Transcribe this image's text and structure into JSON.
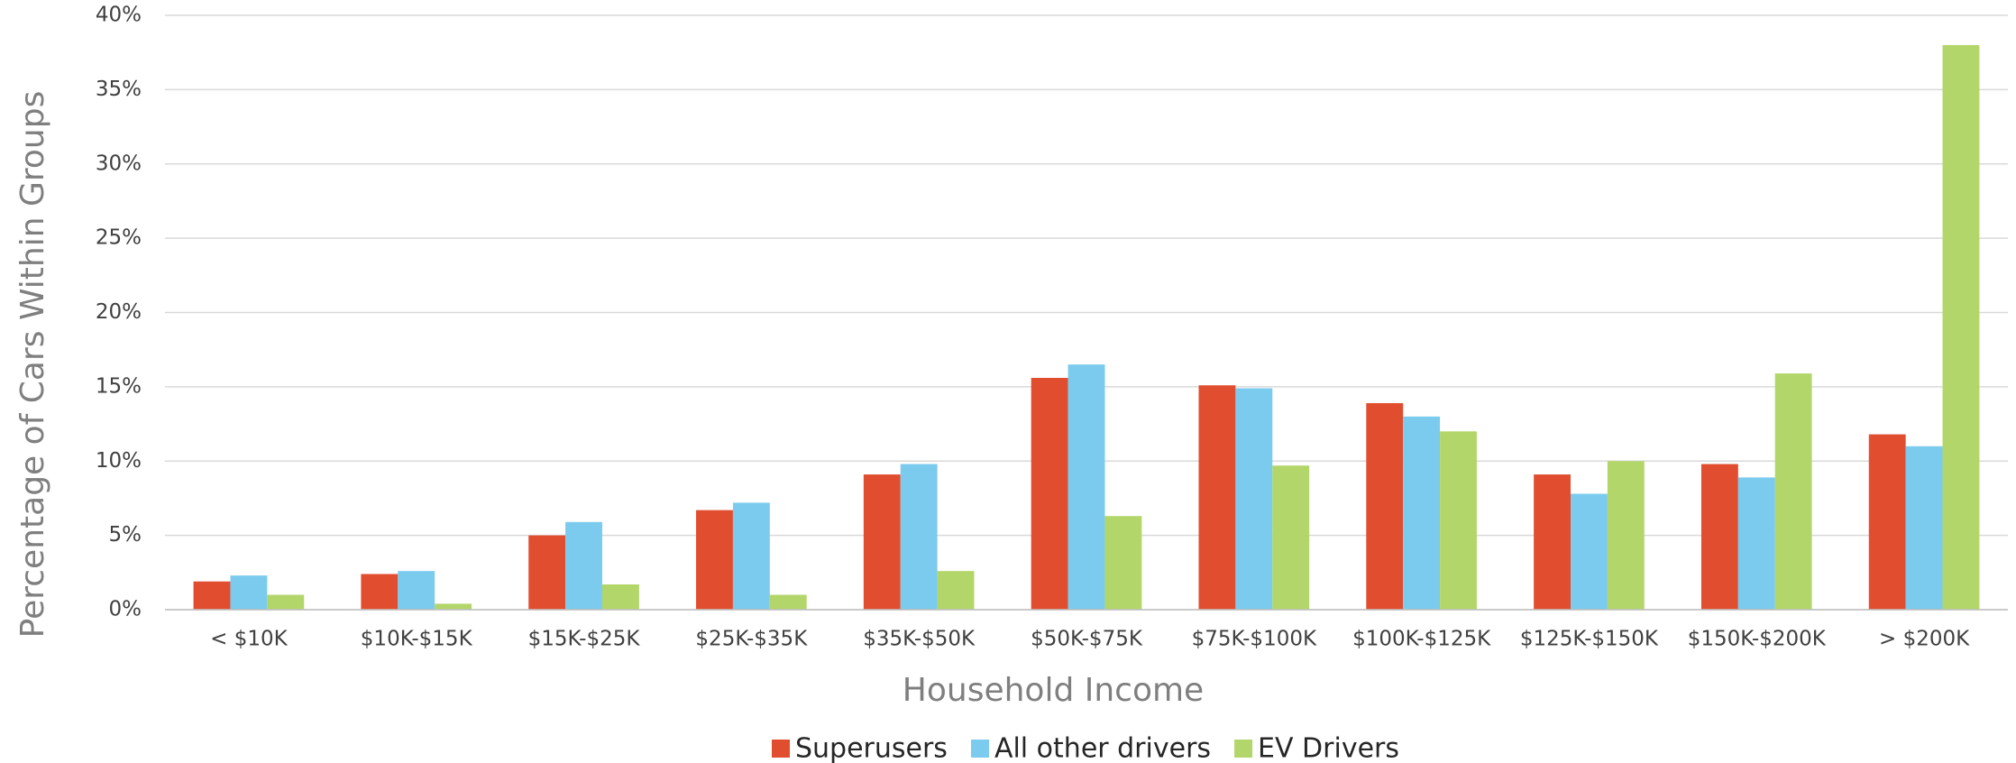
{
  "chart_data": {
    "type": "bar",
    "xlabel": "Household Income",
    "ylabel": "Percentage of Cars Within Groups",
    "categories": [
      "< $10K",
      "$10K-$15K",
      "$15K-$25K",
      "$25K-$35K",
      "$35K-$50K",
      "$50K-$75K",
      "$75K-$100K",
      "$100K-$125K",
      "$125K-$150K",
      "$150K-$200K",
      "> $200K"
    ],
    "series": [
      {
        "name": "Superusers",
        "color": "#e04e2f",
        "values": [
          1.9,
          2.4,
          5.0,
          6.7,
          9.1,
          15.6,
          15.1,
          13.9,
          9.1,
          9.8,
          11.8
        ]
      },
      {
        "name": "All other drivers",
        "color": "#7acbee",
        "values": [
          2.3,
          2.6,
          5.9,
          7.2,
          9.8,
          16.5,
          14.9,
          13.0,
          7.8,
          8.9,
          11.0
        ]
      },
      {
        "name": "EV Drivers",
        "color": "#b3d66a",
        "values": [
          1.0,
          0.4,
          1.7,
          1.0,
          2.6,
          6.3,
          9.7,
          12.0,
          10.0,
          15.9,
          38.0
        ]
      }
    ],
    "ylim": [
      0,
      40
    ],
    "yticks": [
      {
        "value": 0,
        "label": "0%"
      },
      {
        "value": 5,
        "label": "5%"
      },
      {
        "value": 10,
        "label": "10%"
      },
      {
        "value": 15,
        "label": "15%"
      },
      {
        "value": 20,
        "label": "20%"
      },
      {
        "value": 25,
        "label": "25%"
      },
      {
        "value": 30,
        "label": "30%"
      },
      {
        "value": 35,
        "label": "35%"
      },
      {
        "value": 40,
        "label": "40%"
      }
    ],
    "grid": true,
    "legend": "bottom"
  }
}
